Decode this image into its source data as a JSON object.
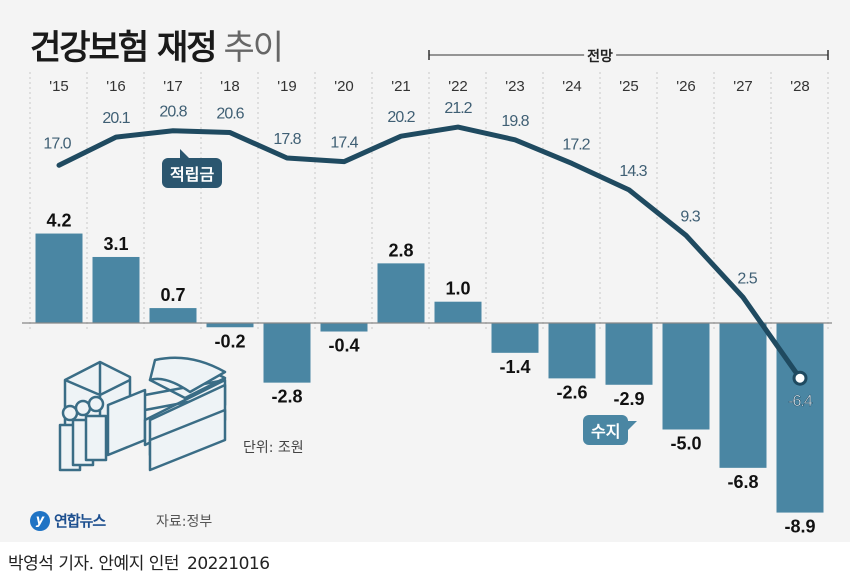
{
  "title": {
    "bold": "건강보험 재정",
    "light": "추이"
  },
  "forecast_label": "전망",
  "unit": "단위: 조원",
  "source": "자료:정부",
  "logo": {
    "mark": "y",
    "name": "연합뉴스"
  },
  "credit": {
    "text": "박영석 기자. 안예지 인턴",
    "date": "20221016"
  },
  "callouts": {
    "reserve": "적립금",
    "balance": "수지"
  },
  "colors": {
    "bar": "#4a86a3",
    "line": "#1f4a60",
    "label_line": "#2f5f7c",
    "bg": "#f4f4f4"
  },
  "chart_data": {
    "type": "bar+line",
    "title": "건강보험 재정 추이",
    "unit": "조원",
    "categories": [
      "'15",
      "'16",
      "'17",
      "'18",
      "'19",
      "'20",
      "'21",
      "'22",
      "'23",
      "'24",
      "'25",
      "'26",
      "'27",
      "'28"
    ],
    "forecast_from": "'22",
    "forecast_to": "'28",
    "series": [
      {
        "name": "적립금",
        "type": "line",
        "values": [
          17.0,
          20.1,
          20.8,
          20.6,
          17.8,
          17.4,
          20.2,
          21.2,
          19.8,
          17.2,
          14.3,
          9.3,
          2.5,
          -6.4
        ]
      },
      {
        "name": "수지",
        "type": "bar",
        "values": [
          4.2,
          3.1,
          0.7,
          -0.2,
          -2.8,
          -0.4,
          2.8,
          1.0,
          -1.4,
          -2.6,
          -2.9,
          -5.0,
          -6.8,
          -8.9
        ]
      }
    ],
    "grid": "vertical-dashed",
    "legend": "inline-callouts"
  }
}
